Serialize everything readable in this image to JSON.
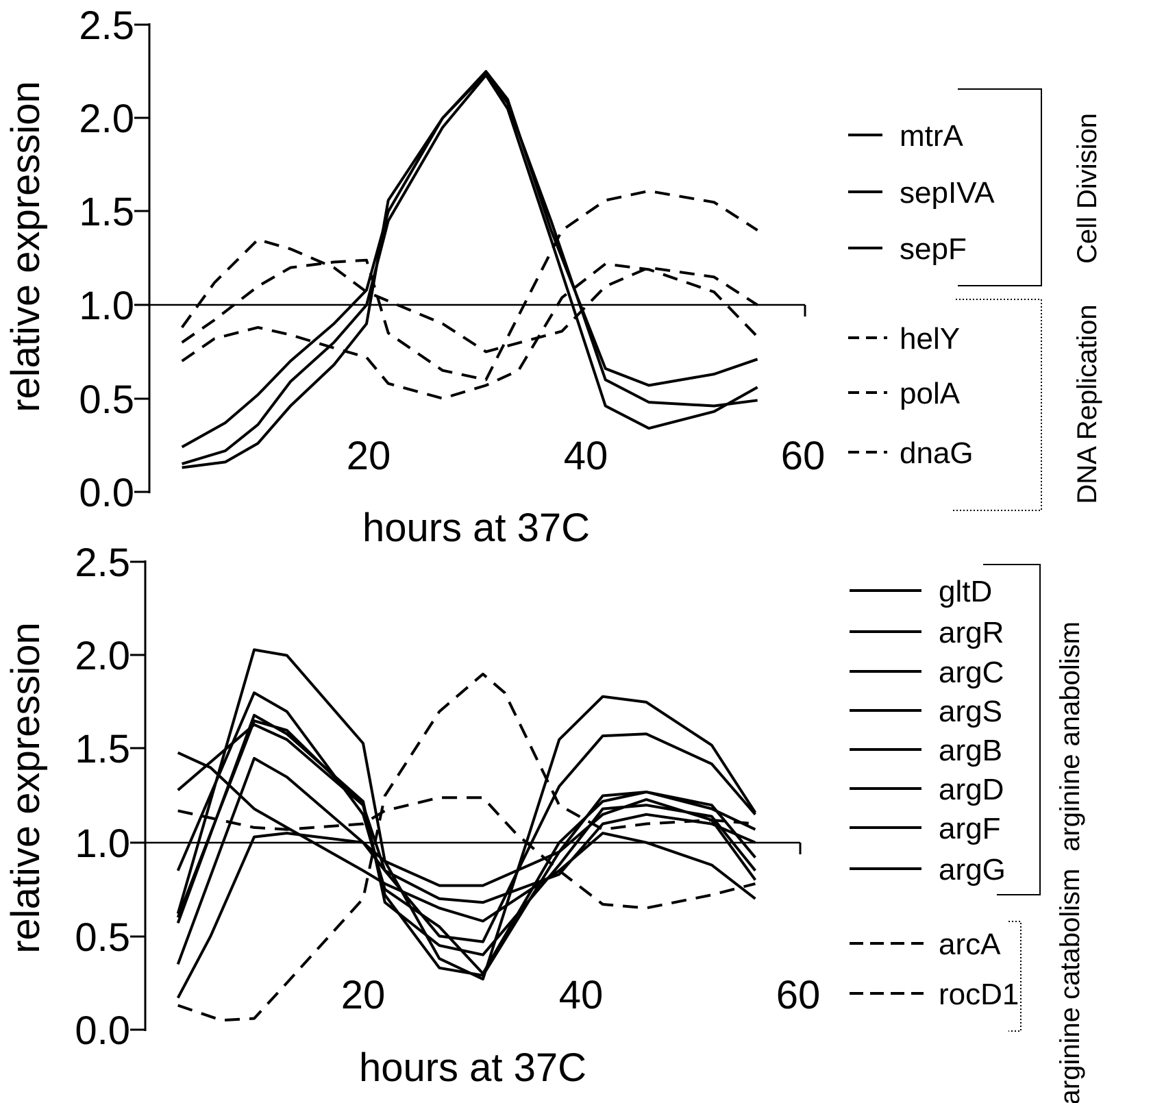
{
  "chart_data": [
    {
      "type": "line",
      "xlabel": "hours at 37C",
      "ylabel": "relative expression",
      "xlim": [
        0,
        60
      ],
      "ylim": [
        0,
        2.5
      ],
      "x_ticks": [
        "20",
        "40",
        "60"
      ],
      "y_ticks": [
        "0.0",
        "0.5",
        "1.0",
        "1.5",
        "2.0",
        "2.5"
      ],
      "reference_line": 1.0,
      "series": [
        {
          "name": "mtrA",
          "style": "solid",
          "x": [
            3,
            7,
            10,
            13,
            17,
            20,
            22,
            27,
            31,
            33,
            37,
            42,
            46,
            52,
            56
          ],
          "y": [
            0.24,
            0.37,
            0.52,
            0.7,
            0.9,
            1.08,
            1.5,
            2.0,
            2.25,
            2.1,
            1.4,
            0.66,
            0.57,
            0.63,
            0.71
          ]
        },
        {
          "name": "sepIVA",
          "style": "solid",
          "x": [
            3,
            7,
            10,
            13,
            17,
            20,
            22,
            27,
            31,
            33,
            37,
            42,
            46,
            52,
            56
          ],
          "y": [
            0.15,
            0.22,
            0.36,
            0.59,
            0.8,
            1.0,
            1.45,
            1.95,
            2.23,
            2.05,
            1.35,
            0.46,
            0.34,
            0.43,
            0.56
          ]
        },
        {
          "name": "sepF",
          "style": "solid",
          "x": [
            3,
            7,
            10,
            13,
            17,
            20,
            22,
            27,
            31,
            33,
            37,
            42,
            46,
            52,
            56
          ],
          "y": [
            0.13,
            0.16,
            0.26,
            0.46,
            0.68,
            0.9,
            1.56,
            2.0,
            2.24,
            2.08,
            1.45,
            0.6,
            0.48,
            0.46,
            0.49
          ]
        },
        {
          "name": "helY",
          "style": "dashed",
          "x": [
            3,
            6,
            10,
            13,
            17,
            20,
            27,
            31,
            38,
            42,
            46,
            52,
            56
          ],
          "y": [
            0.88,
            1.12,
            1.35,
            1.3,
            1.2,
            1.07,
            0.9,
            0.75,
            0.86,
            1.1,
            1.2,
            1.15,
            1.0
          ]
        },
        {
          "name": "polA",
          "style": "dashed",
          "x": [
            3,
            6,
            10,
            13,
            17,
            20,
            22,
            27,
            31,
            38,
            42,
            46,
            52,
            56
          ],
          "y": [
            0.8,
            0.92,
            1.1,
            1.2,
            1.23,
            1.24,
            0.85,
            0.65,
            0.6,
            1.4,
            1.56,
            1.61,
            1.55,
            1.4
          ]
        },
        {
          "name": "dnaG",
          "style": "dashed",
          "x": [
            3,
            6,
            10,
            13,
            17,
            20,
            22,
            27,
            31,
            34,
            38,
            42,
            46,
            52,
            56
          ],
          "y": [
            0.7,
            0.82,
            0.88,
            0.84,
            0.77,
            0.72,
            0.58,
            0.5,
            0.57,
            0.65,
            1.04,
            1.22,
            1.19,
            1.07,
            0.83
          ]
        }
      ]
    },
    {
      "type": "line",
      "xlabel": "hours at 37C",
      "ylabel": "relative expression",
      "xlim": [
        0,
        60
      ],
      "ylim": [
        0,
        2.5
      ],
      "x_ticks": [
        "20",
        "40",
        "60"
      ],
      "y_ticks": [
        "0.0",
        "0.5",
        "1.0",
        "1.5",
        "2.0",
        "2.5"
      ],
      "reference_line": 1.0,
      "series": [
        {
          "name": "gltD",
          "style": "solid",
          "x": [
            3,
            10,
            13,
            20,
            22,
            27,
            31,
            38,
            42,
            46,
            52,
            56
          ],
          "y": [
            0.85,
            1.8,
            1.7,
            1.15,
            0.75,
            0.55,
            0.3,
            1.0,
            1.22,
            1.27,
            1.18,
            1.07
          ]
        },
        {
          "name": "argR",
          "style": "solid",
          "x": [
            3,
            10,
            13,
            20,
            22,
            27,
            31,
            38,
            42,
            46,
            52,
            56
          ],
          "y": [
            0.62,
            2.03,
            2.0,
            1.53,
            0.9,
            0.38,
            0.27,
            1.55,
            1.78,
            1.75,
            1.52,
            1.16
          ]
        },
        {
          "name": "argC",
          "style": "solid",
          "x": [
            3,
            10,
            13,
            20,
            22,
            27,
            31,
            38,
            42,
            46,
            52,
            56
          ],
          "y": [
            0.6,
            1.65,
            1.6,
            1.2,
            0.72,
            0.33,
            0.29,
            0.95,
            1.15,
            1.23,
            1.12,
            0.8
          ]
        },
        {
          "name": "argS",
          "style": "solid",
          "x": [
            3,
            10,
            13,
            20,
            22,
            27,
            31,
            38,
            42,
            46,
            52,
            56
          ],
          "y": [
            0.57,
            1.68,
            1.58,
            1.22,
            0.68,
            0.45,
            0.4,
            0.88,
            1.18,
            1.2,
            1.14,
            0.85
          ]
        },
        {
          "name": "argB",
          "style": "solid",
          "x": [
            3,
            10,
            13,
            20,
            22,
            27,
            31,
            38,
            42,
            46,
            52,
            56
          ],
          "y": [
            1.28,
            1.63,
            1.55,
            1.2,
            0.85,
            0.5,
            0.47,
            1.3,
            1.57,
            1.58,
            1.42,
            1.15
          ]
        },
        {
          "name": "argD",
          "style": "solid",
          "x": [
            3,
            10,
            13,
            20,
            22,
            27,
            31,
            38,
            42,
            46,
            52,
            56
          ],
          "y": [
            0.35,
            1.45,
            1.35,
            1.0,
            0.9,
            0.77,
            0.77,
            0.95,
            1.25,
            1.27,
            1.2,
            0.92
          ]
        },
        {
          "name": "argF",
          "style": "solid",
          "x": [
            3,
            6,
            10,
            13,
            20,
            22,
            27,
            31,
            38,
            42,
            46,
            52,
            56
          ],
          "y": [
            0.17,
            0.5,
            1.03,
            1.05,
            1.0,
            0.85,
            0.7,
            0.68,
            0.83,
            1.1,
            1.15,
            1.1,
            1.0
          ]
        },
        {
          "name": "argG",
          "style": "solid",
          "x": [
            3,
            6,
            10,
            13,
            20,
            22,
            27,
            31,
            38,
            42,
            46,
            52,
            56
          ],
          "y": [
            1.48,
            1.4,
            1.18,
            1.08,
            0.85,
            0.78,
            0.65,
            0.58,
            0.85,
            1.05,
            1.0,
            0.88,
            0.7
          ]
        },
        {
          "name": "arcA",
          "style": "dashed",
          "x": [
            3,
            10,
            13,
            20,
            22,
            27,
            31,
            34,
            38,
            42,
            46,
            52,
            56
          ],
          "y": [
            1.17,
            1.08,
            1.07,
            1.1,
            1.17,
            1.24,
            1.24,
            1.05,
            0.85,
            0.67,
            0.65,
            0.72,
            0.78
          ]
        },
        {
          "name": "rocD1",
          "style": "dashed",
          "x": [
            3,
            7,
            10,
            13,
            20,
            22,
            27,
            31,
            33,
            38,
            42,
            46,
            52,
            56
          ],
          "y": [
            0.13,
            0.05,
            0.06,
            0.25,
            0.7,
            1.25,
            1.7,
            1.9,
            1.8,
            1.2,
            1.07,
            1.1,
            1.12,
            1.1
          ]
        }
      ]
    }
  ],
  "groups": {
    "top": [
      "Cell Division",
      "DNA Replication"
    ],
    "bottom": [
      "arginine anabolism",
      "arginine catabolism"
    ]
  }
}
